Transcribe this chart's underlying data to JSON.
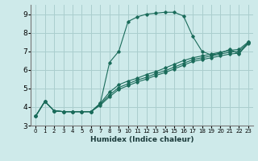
{
  "xlabel": "Humidex (Indice chaleur)",
  "bg_color": "#ceeaea",
  "grid_color": "#aacece",
  "line_color": "#1a6b5a",
  "xlim": [
    -0.5,
    23.5
  ],
  "ylim": [
    3,
    9.5
  ],
  "xticks": [
    0,
    1,
    2,
    3,
    4,
    5,
    6,
    7,
    8,
    9,
    10,
    11,
    12,
    13,
    14,
    15,
    16,
    17,
    18,
    19,
    20,
    21,
    22,
    23
  ],
  "yticks": [
    3,
    4,
    5,
    6,
    7,
    8,
    9
  ],
  "series": [
    {
      "x": [
        0,
        1,
        2,
        3,
        4,
        5,
        6,
        7,
        8,
        9,
        10,
        11,
        12,
        13,
        14,
        15,
        16,
        17,
        18,
        19,
        20,
        21,
        22,
        23
      ],
      "y": [
        3.5,
        4.3,
        3.8,
        3.75,
        3.75,
        3.75,
        3.75,
        4.2,
        6.4,
        7.0,
        8.6,
        8.85,
        9.0,
        9.05,
        9.1,
        9.1,
        8.9,
        7.8,
        7.0,
        6.8,
        6.9,
        7.1,
        6.85,
        7.5
      ]
    },
    {
      "x": [
        0,
        1,
        2,
        3,
        4,
        5,
        6,
        7,
        8,
        9,
        10,
        11,
        12,
        13,
        14,
        15,
        16,
        17,
        18,
        19,
        20,
        21,
        22,
        23
      ],
      "y": [
        3.5,
        4.3,
        3.8,
        3.75,
        3.75,
        3.75,
        3.75,
        4.2,
        4.8,
        5.2,
        5.4,
        5.55,
        5.75,
        5.9,
        6.1,
        6.3,
        6.5,
        6.65,
        6.75,
        6.85,
        6.95,
        7.05,
        7.1,
        7.5
      ]
    },
    {
      "x": [
        0,
        1,
        2,
        3,
        4,
        5,
        6,
        7,
        8,
        9,
        10,
        11,
        12,
        13,
        14,
        15,
        16,
        17,
        18,
        19,
        20,
        21,
        22,
        23
      ],
      "y": [
        3.5,
        4.3,
        3.8,
        3.75,
        3.75,
        3.75,
        3.75,
        4.15,
        4.65,
        5.05,
        5.25,
        5.45,
        5.6,
        5.8,
        5.95,
        6.15,
        6.35,
        6.55,
        6.65,
        6.75,
        6.85,
        6.95,
        7.0,
        7.45
      ]
    },
    {
      "x": [
        0,
        1,
        2,
        3,
        4,
        5,
        6,
        7,
        8,
        9,
        10,
        11,
        12,
        13,
        14,
        15,
        16,
        17,
        18,
        19,
        20,
        21,
        22,
        23
      ],
      "y": [
        3.5,
        4.3,
        3.8,
        3.75,
        3.75,
        3.75,
        3.75,
        4.1,
        4.55,
        4.95,
        5.15,
        5.35,
        5.5,
        5.7,
        5.85,
        6.05,
        6.25,
        6.45,
        6.55,
        6.65,
        6.75,
        6.85,
        6.9,
        7.4
      ]
    }
  ]
}
